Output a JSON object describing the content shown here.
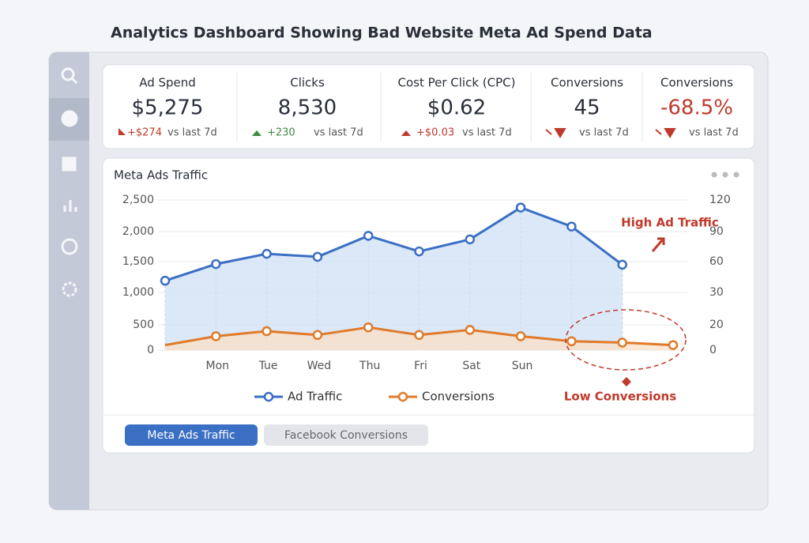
{
  "title": "Analytics Dashboard Showing Bad Website Meta Ad Spend Data",
  "kpis": [
    {
      "label": "Ad Spend",
      "value": "$5,275",
      "delta": "+$274",
      "note": "vs last 7d"
    },
    {
      "label": "Clicks",
      "value": "8,530",
      "delta": "+230",
      "note": "vs last 7d"
    },
    {
      "label": "Cost Per Click (CPC)",
      "value": "$0.62",
      "delta": "+$0.03",
      "note": "vs last 7d"
    },
    {
      "label": "Conversions",
      "value": "45",
      "note": "vs last 7d"
    },
    {
      "label": "Conversions",
      "value": "-68.5%",
      "note": "vs last 7d"
    }
  ],
  "chart_data": {
    "type": "line",
    "title": "Meta Ads Traffic",
    "categories": [
      null,
      "Mon",
      "Tue",
      "Wed",
      "Thu",
      "Fri",
      "Sat",
      "Sun",
      null,
      null,
      null
    ],
    "series": [
      {
        "name": "Ad Traffic",
        "color": "#3a6fc4",
        "values": [
          1190,
          1460,
          1630,
          1580,
          1930,
          1670,
          1870,
          2380,
          2080,
          1450,
          null
        ]
      },
      {
        "name": "Conversions",
        "color": "#e07a2a",
        "axis": "y2",
        "values": [
          4,
          11,
          15,
          12,
          18,
          12,
          16,
          11,
          7,
          6,
          4
        ]
      }
    ],
    "ylim": [
      0,
      2500
    ],
    "yticks": [
      0,
      500,
      {
        "value": 1000,
        "label": "1,000"
      },
      {
        "value": 1500,
        "label": "1,500"
      },
      {
        "value": 2000,
        "label": "2,000"
      },
      {
        "value": 2500,
        "label": "2,500"
      }
    ],
    "y2lim": [
      0,
      120
    ],
    "y2ticks": [
      0,
      20,
      30,
      60,
      90,
      120
    ],
    "grid": true,
    "annotations": [
      "High Ad Traffic",
      "Low Conversions"
    ]
  },
  "tabs": [
    "Meta Ads Traffic",
    "Facebook Conversions"
  ]
}
